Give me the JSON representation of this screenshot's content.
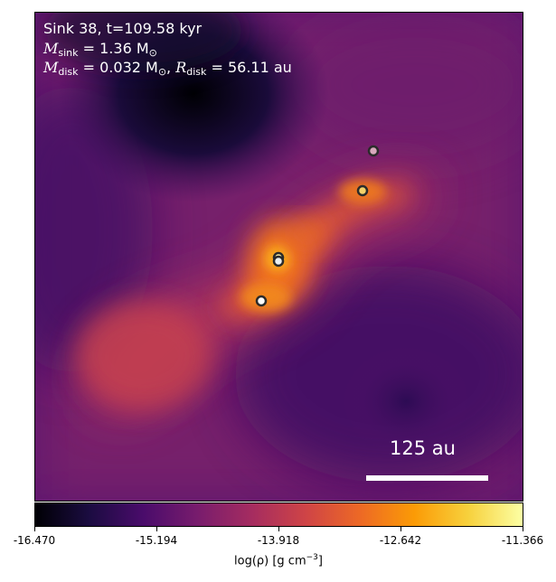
{
  "annotation": {
    "line1": "Sink 38, t=109.58 kyr",
    "msink_label": "M",
    "msink_sub": "sink",
    "msink_value": "= 1.36 M",
    "msink_sub2": "⊙",
    "mdisk_label": "M",
    "mdisk_sub": "disk",
    "mdisk_value": "= 0.032 M",
    "mdisk_sub2": "⊙",
    "rdisk_sep": ", ",
    "rdisk_label": "R",
    "rdisk_sub": "disk",
    "rdisk_value": "= 56.11 au"
  },
  "scale_bar": {
    "label": "125 au",
    "length_au": 125
  },
  "colorbar": {
    "colormap": "inferno",
    "min": -16.47,
    "max": -11.366,
    "ticks": [
      "-16.470",
      "-15.194",
      "-13.918",
      "-12.642",
      "-11.366"
    ],
    "label_main": "log(ρ) [g cm",
    "label_exp": "−3",
    "label_end": "]"
  },
  "sinks": [
    {
      "id": "sink-1",
      "fill": "#d9a8bd"
    },
    {
      "id": "sink-2",
      "fill": "#f4d36a"
    },
    {
      "id": "sink-3",
      "fill": "#f9f2a8"
    },
    {
      "id": "sink-4",
      "fill": "#e9f0f0"
    },
    {
      "id": "sink-5",
      "fill": "#ffffff"
    }
  ]
}
